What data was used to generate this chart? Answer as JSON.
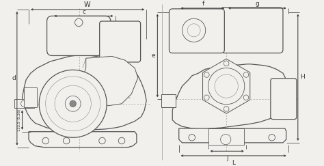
{
  "bg_color": "#f2f0ed",
  "lc": "#333333",
  "lc2": "#555555",
  "lc3": "#888888",
  "white": "#ffffff",
  "left": {
    "label_W": "W",
    "label_c": "c",
    "label_d": "d",
    "dim_text": "133.5 (5.26)"
  },
  "right": {
    "label_f": "f",
    "label_g": "g",
    "label_H": "H",
    "label_e": "e",
    "label_j": "j",
    "label_L": "L"
  },
  "dim_arrow_lw": 0.7,
  "ext_line_lw": 0.5,
  "engine_lw": 0.6,
  "engine_lw2": 0.9
}
